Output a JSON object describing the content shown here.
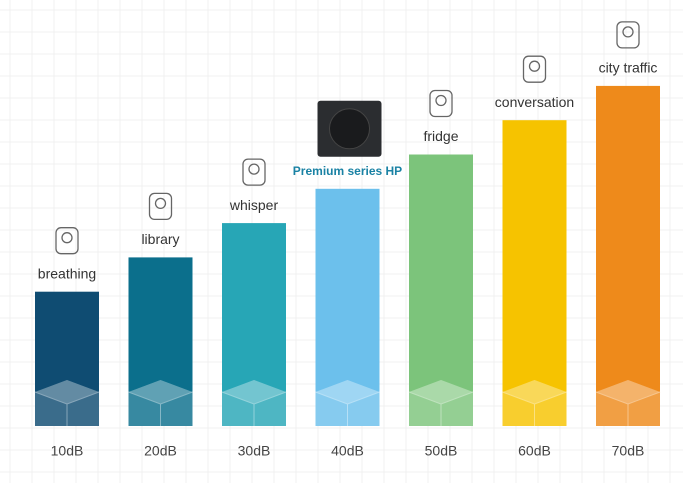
{
  "chart_data": {
    "type": "bar",
    "categories": [
      "breathing",
      "library",
      "whisper",
      "Premium series HP",
      "fridge",
      "conversation",
      "city traffic"
    ],
    "values": [
      10,
      20,
      30,
      40,
      50,
      60,
      70
    ],
    "value_labels": [
      "10dB",
      "20dB",
      "30dB",
      "40dB",
      "50dB",
      "60dB",
      "70dB"
    ],
    "colors": [
      "#0f4c72",
      "#0b6f8c",
      "#27a6b6",
      "#6cc0ec",
      "#7cc47b",
      "#f6c300",
      "#ee8a1b"
    ]
  }
}
